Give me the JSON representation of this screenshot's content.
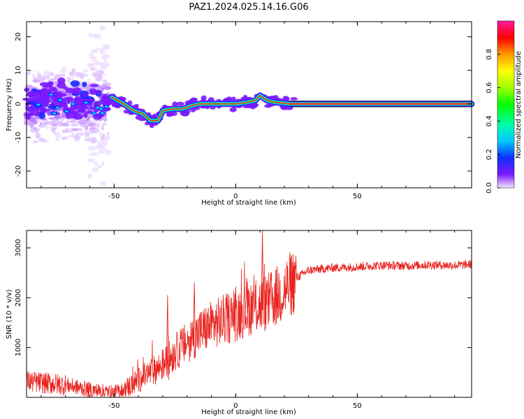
{
  "title": "PAZ1.2024.025.14.16.G06",
  "colors": {
    "snr_line": "#e8231e",
    "track_core": "#ff2a2a",
    "track_glow": "#00ff66",
    "scatter": "#7a1bff"
  },
  "chart_data": [
    {
      "type": "heatmap",
      "name": "spectrogram",
      "xlabel": "Height of straight line (km)",
      "ylabel": "Frequency (Hz)",
      "xlim": [
        -86,
        97
      ],
      "ylim": [
        -25,
        24.5
      ],
      "xticks": [
        -50,
        0,
        50
      ],
      "xtick_labels": [
        "-50",
        "0",
        "50"
      ],
      "yticks": [
        -20,
        -10,
        0,
        10,
        20
      ],
      "ytick_labels": [
        "-20",
        "-10",
        "0",
        "10",
        "20"
      ],
      "colorbar": {
        "label": "Normalized spectral amplitude",
        "range": [
          0,
          1
        ],
        "ticks": [
          0,
          0.2,
          0.4,
          0.6,
          0.8
        ],
        "tick_labels": [
          "0.0",
          "0.2",
          "0.4",
          "0.6",
          "0.8"
        ],
        "colormap": "gist_ncar-like"
      },
      "track": {
        "x": [
          -51,
          -46,
          -42,
          -38,
          -35,
          -32,
          -30,
          -26,
          -22,
          -18,
          -15,
          -10,
          -5,
          0,
          5,
          8,
          10,
          13,
          16,
          20,
          22,
          97
        ],
        "y": [
          2,
          0,
          -2,
          -3,
          -5,
          -5,
          -2,
          -1.5,
          -1.5,
          -0.5,
          0,
          0,
          0,
          0,
          0.5,
          1,
          2.5,
          1,
          0.5,
          0.2,
          0,
          0
        ]
      },
      "scatter_region_x": [
        -86,
        -52
      ],
      "scatter_region_y": [
        -25,
        24.5
      ]
    },
    {
      "type": "line",
      "name": "snr",
      "xlabel": "Height of straight line (km)",
      "ylabel": "SNR (10 * v/v)",
      "xlim": [
        -86,
        97
      ],
      "ylim": [
        0,
        3350
      ],
      "xticks": [
        -50,
        0,
        50
      ],
      "xtick_labels": [
        "-50",
        "0",
        "50"
      ],
      "yticks": [
        1000,
        2000,
        3000
      ],
      "ytick_labels": [
        "1000",
        "2000",
        "3000"
      ],
      "trend": {
        "x": [
          -86,
          -70,
          -60,
          -50,
          -45,
          -40,
          -35,
          -30,
          -25,
          -20,
          -15,
          -10,
          -5,
          0,
          5,
          10,
          15,
          20,
          25,
          30,
          40,
          50,
          60,
          70,
          80,
          90,
          97
        ],
        "y": [
          320,
          250,
          150,
          90,
          180,
          350,
          500,
          650,
          900,
          1100,
          1300,
          1450,
          1550,
          1650,
          1800,
          1850,
          1950,
          2150,
          2400,
          2550,
          2600,
          2620,
          2650,
          2640,
          2660,
          2650,
          2670
        ]
      },
      "spikes": [
        {
          "x": 11,
          "y": 3350
        },
        {
          "x": -28,
          "y": 2050
        },
        {
          "x": -17,
          "y": 2300
        },
        {
          "x": 4.5,
          "y": 2400
        }
      ]
    }
  ]
}
